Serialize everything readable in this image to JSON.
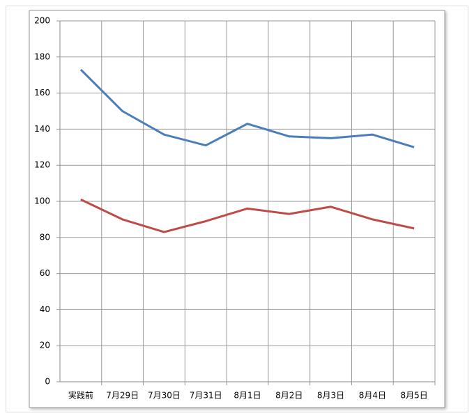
{
  "chart_data": {
    "type": "line",
    "categories": [
      "実践前",
      "7月29日",
      "7月30日",
      "7月31日",
      "8月1日",
      "8月2日",
      "8月3日",
      "8月4日",
      "8月5日"
    ],
    "series": [
      {
        "color": "#4a7ebb",
        "values": [
          173,
          150,
          137,
          131,
          143,
          136,
          135,
          137,
          130
        ]
      },
      {
        "color": "#be4b48",
        "values": [
          101,
          90,
          83,
          89,
          96,
          93,
          97,
          90,
          85
        ]
      }
    ],
    "ylim": [
      0,
      200
    ],
    "yticks": [
      0,
      20,
      40,
      60,
      80,
      100,
      120,
      140,
      160,
      180,
      200
    ],
    "grid": true
  }
}
